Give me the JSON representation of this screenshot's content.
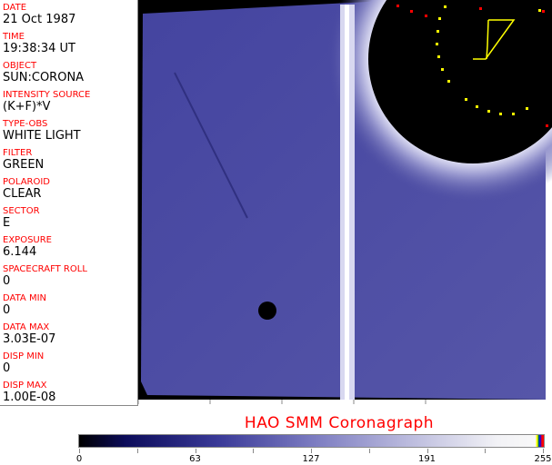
{
  "fields": [
    {
      "label": "DATE",
      "value": "21 Oct 1987"
    },
    {
      "label": "TIME",
      "value": "19:38:34 UT"
    },
    {
      "label": "OBJECT",
      "value": "SUN:CORONA"
    },
    {
      "label": "INTENSITY SOURCE",
      "value": "(K+F)*V"
    },
    {
      "label": "TYPE-OBS",
      "value": "WHITE LIGHT"
    },
    {
      "label": "FILTER",
      "value": "GREEN"
    },
    {
      "label": "POLAROID",
      "value": "CLEAR"
    },
    {
      "label": "SECTOR",
      "value": "E"
    },
    {
      "label": "EXPOSURE",
      "value": "6.144"
    },
    {
      "label": "SPACECRAFT ROLL",
      "value": "0"
    },
    {
      "label": "DATA MIN",
      "value": "0"
    },
    {
      "label": "DATA MAX",
      "value": "3.03E-07"
    },
    {
      "label": "DISP MIN",
      "value": "0"
    },
    {
      "label": "DISP MAX",
      "value": "1.00E-08"
    }
  ],
  "title": "HAO  SMM Coronagraph",
  "colorbar": {
    "ticks": [
      "0",
      "63",
      "127",
      "191",
      "255"
    ]
  },
  "colors": {
    "label": "#ff0000",
    "image_blue": "#4a4aa0",
    "overlay_yellow": "#ffff00",
    "overlay_red": "#ff0000"
  }
}
